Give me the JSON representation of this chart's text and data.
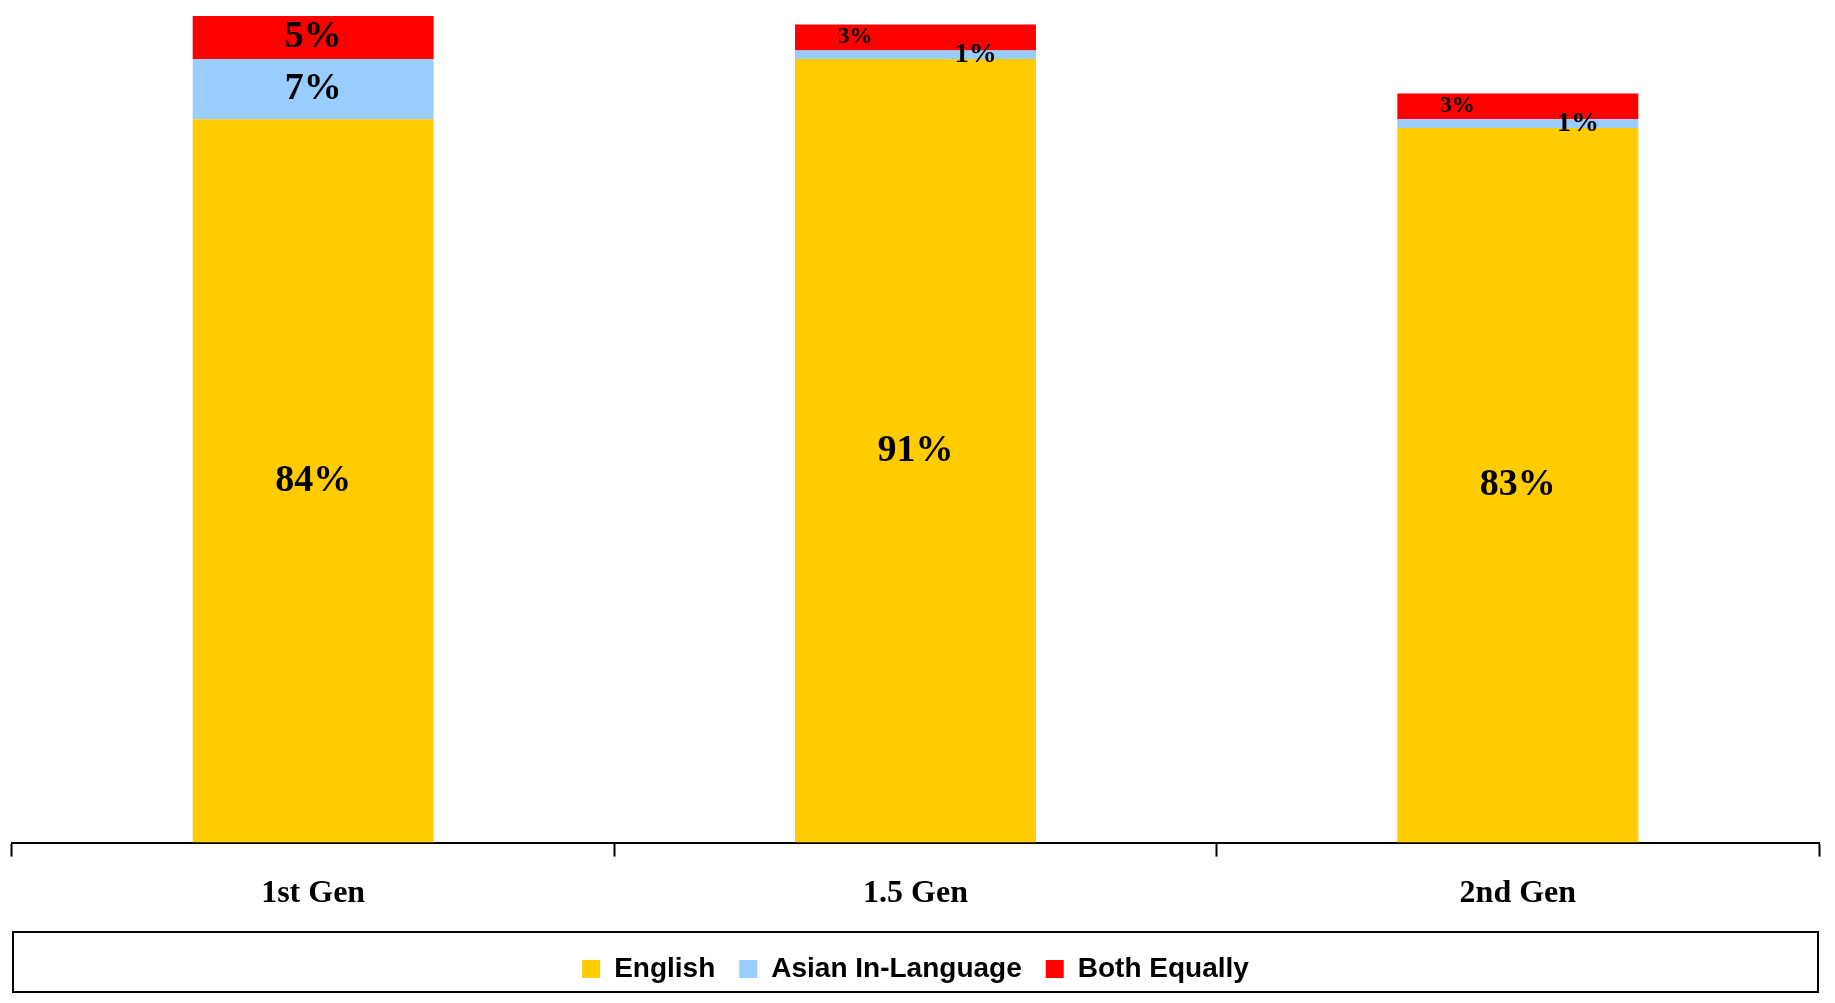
{
  "chart_data": {
    "type": "bar",
    "stacked": true,
    "categories": [
      "1st Gen",
      "1.5 Gen",
      "2nd Gen"
    ],
    "series": [
      {
        "name": "English",
        "color": "#ffcc00",
        "values": [
          84,
          91,
          83
        ],
        "value_labels": [
          "84%",
          "91%",
          "83%"
        ]
      },
      {
        "name": "Asian In-Language",
        "color": "#99ccff",
        "values": [
          7,
          1,
          1
        ],
        "value_labels": [
          "7%",
          "1%",
          "1%"
        ]
      },
      {
        "name": "Both Equally",
        "color": "#ff0000",
        "values": [
          5,
          3,
          3
        ],
        "value_labels": [
          "5%",
          "3%",
          "3%"
        ]
      }
    ],
    "legend": "bottom",
    "grid": false
  }
}
